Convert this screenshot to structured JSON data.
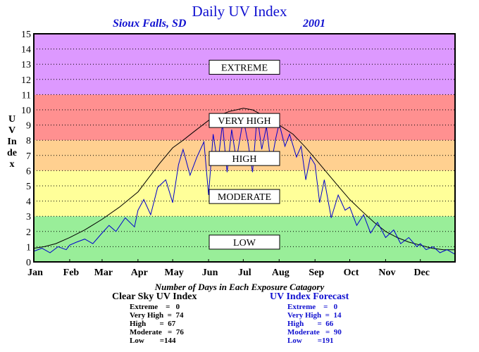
{
  "title": "Daily UV Index",
  "location": "Sioux Falls, SD",
  "year": "2001",
  "ylabel": "UV Index",
  "footer": {
    "title": "Number of Days in Each Exposure Catagory",
    "clear_sky": {
      "heading": "Clear Sky UV Index",
      "rows": [
        "Extreme    =   0",
        "Very High  =  74",
        "High       =  67",
        "Moderate   =  76",
        "Low        =144"
      ]
    },
    "forecast": {
      "heading": "UV Index Forecast",
      "rows": [
        "Extreme    =   0",
        "Very High  =  14",
        "High       =  66",
        "Moderate   =  90",
        "Low        =191"
      ]
    }
  },
  "chart_data": {
    "type": "line",
    "title": "Daily UV Index",
    "ylabel": "UV Index",
    "xlabel": "",
    "ylim": [
      0,
      15
    ],
    "xlim": [
      1,
      365
    ],
    "grid": true,
    "x_ticks": [
      {
        "label": "Jan",
        "day": 1
      },
      {
        "label": "Feb",
        "day": 32
      },
      {
        "label": "Mar",
        "day": 60
      },
      {
        "label": "Apr",
        "day": 91
      },
      {
        "label": "May",
        "day": 121
      },
      {
        "label": "Jun",
        "day": 152
      },
      {
        "label": "Jul",
        "day": 182
      },
      {
        "label": "Aug",
        "day": 213
      },
      {
        "label": "Sep",
        "day": 244
      },
      {
        "label": "Oct",
        "day": 274
      },
      {
        "label": "Nov",
        "day": 305
      },
      {
        "label": "Dec",
        "day": 335
      }
    ],
    "y_ticks": [
      0,
      1,
      2,
      3,
      4,
      5,
      6,
      7,
      8,
      9,
      10,
      11,
      12,
      13,
      14,
      15
    ],
    "bands": [
      {
        "label": "LOW",
        "from": 0,
        "to": 3,
        "color": "#99ee99",
        "label_y": 1.3
      },
      {
        "label": "MODERATE",
        "from": 3,
        "to": 6,
        "color": "#ffff99",
        "label_y": 4.3
      },
      {
        "label": "HIGH",
        "from": 6,
        "to": 8,
        "color": "#ffd090",
        "label_y": 6.8
      },
      {
        "label": "VERY HIGH",
        "from": 8,
        "to": 11,
        "color": "#ff9090",
        "label_y": 9.3
      },
      {
        "label": "EXTREME",
        "from": 11,
        "to": 15,
        "color": "#dd99ff",
        "label_y": 12.8
      }
    ],
    "series": [
      {
        "name": "Clear Sky UV Index",
        "color": "#000000",
        "x": [
          1,
          10,
          20,
          32,
          45,
          60,
          75,
          91,
          100,
          110,
          121,
          130,
          140,
          152,
          160,
          170,
          182,
          190,
          200,
          213,
          225,
          235,
          244,
          255,
          265,
          274,
          285,
          295,
          305,
          315,
          325,
          335,
          345,
          355,
          365
        ],
        "y": [
          0.9,
          1.0,
          1.2,
          1.6,
          2.1,
          2.8,
          3.6,
          4.6,
          5.5,
          6.5,
          7.5,
          8.0,
          8.6,
          9.3,
          9.6,
          9.9,
          10.1,
          10.0,
          9.6,
          9.0,
          8.4,
          7.6,
          6.8,
          5.8,
          4.9,
          4.1,
          3.3,
          2.6,
          2.0,
          1.6,
          1.3,
          1.1,
          0.9,
          0.8,
          0.8
        ]
      },
      {
        "name": "UV Index Forecast",
        "color": "#0000cc",
        "x": [
          1,
          8,
          15,
          22,
          29,
          32,
          38,
          45,
          52,
          60,
          66,
          72,
          80,
          88,
          91,
          96,
          102,
          108,
          115,
          121,
          126,
          130,
          136,
          142,
          148,
          152,
          156,
          160,
          164,
          168,
          172,
          176,
          182,
          186,
          190,
          194,
          198,
          202,
          206,
          210,
          213,
          218,
          222,
          228,
          232,
          236,
          240,
          244,
          248,
          252,
          258,
          264,
          270,
          274,
          280,
          286,
          292,
          298,
          305,
          312,
          318,
          325,
          332,
          335,
          340,
          346,
          352,
          358,
          365
        ],
        "y": [
          0.7,
          0.9,
          0.6,
          1.0,
          0.8,
          1.1,
          1.3,
          1.5,
          1.2,
          1.9,
          2.4,
          2.0,
          2.9,
          2.3,
          3.4,
          4.1,
          3.1,
          4.9,
          5.4,
          3.9,
          6.4,
          7.4,
          5.7,
          6.9,
          7.9,
          4.4,
          8.4,
          6.4,
          9.1,
          5.9,
          8.7,
          6.7,
          9.4,
          7.9,
          5.9,
          9.6,
          7.4,
          8.9,
          6.4,
          8.1,
          9.1,
          7.6,
          8.4,
          6.9,
          7.6,
          5.4,
          6.9,
          6.4,
          3.9,
          5.4,
          2.9,
          4.4,
          3.4,
          3.6,
          2.4,
          3.1,
          1.9,
          2.6,
          1.6,
          2.1,
          1.2,
          1.6,
          1.0,
          1.2,
          0.8,
          1.0,
          0.6,
          0.8,
          0.5
        ]
      }
    ]
  }
}
